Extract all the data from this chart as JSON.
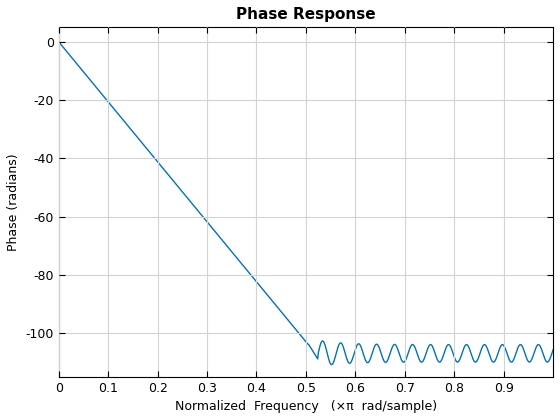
{
  "title": "Phase Response",
  "xlabel": "Normalized  Frequency   (×π  rad/sample)",
  "ylabel": "Phase (radians)",
  "line_color": "#0072BD",
  "line_width": 1.0,
  "xlim": [
    0,
    1.0
  ],
  "ylim": [
    -115,
    5
  ],
  "yticks": [
    0,
    -20,
    -40,
    -60,
    -80,
    -100
  ],
  "xticks": [
    0,
    0.1,
    0.2,
    0.3,
    0.4,
    0.5,
    0.6,
    0.7,
    0.8,
    0.9
  ],
  "grid_color": "#D3D3D3",
  "background_color": "#FFFFFF",
  "title_fontsize": 11,
  "label_fontsize": 9,
  "tick_fontsize": 9
}
